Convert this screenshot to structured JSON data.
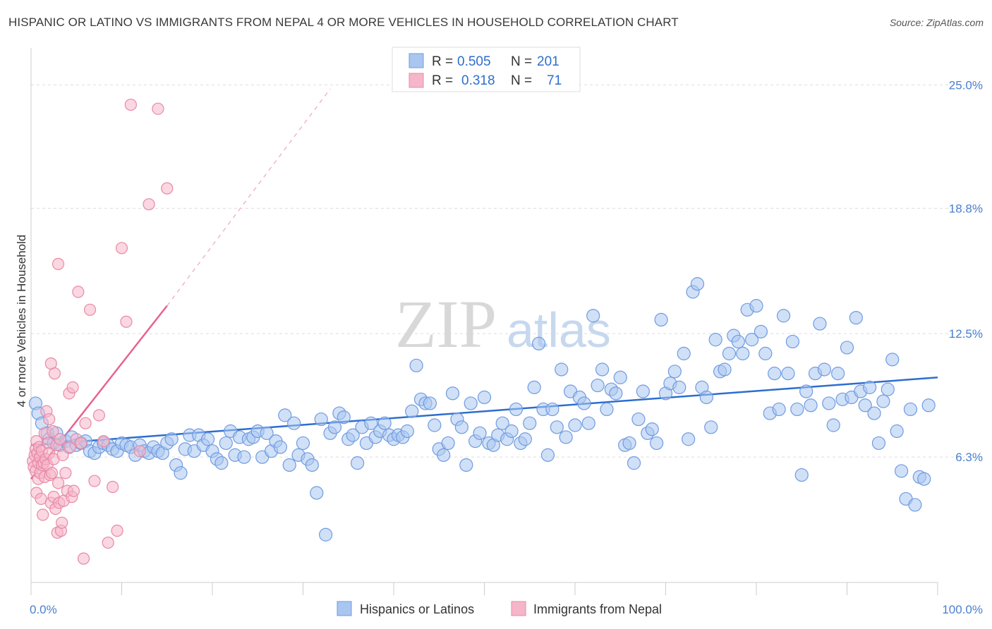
{
  "title": "HISPANIC OR LATINO VS IMMIGRANTS FROM NEPAL 4 OR MORE VEHICLES IN HOUSEHOLD CORRELATION CHART",
  "source": "Source: ZipAtlas.com",
  "watermark": {
    "zip": "ZIP",
    "atlas": "atlas"
  },
  "colors": {
    "blue": "#2d6ecf",
    "blue_fill": "#a9c6f0",
    "pink": "#e8638e",
    "pink_fill": "#f6b6c9",
    "grid": "#dddddd"
  },
  "legend_top": {
    "rows": [
      {
        "r_label": "R =",
        "r_value": "0.505",
        "n_label": "N =",
        "n_value": "201"
      },
      {
        "r_label": "R =",
        "r_value": "0.318",
        "n_label": "N =",
        "n_value": "71"
      }
    ]
  },
  "legend_bottom": [
    "Hispanics or Latinos",
    "Immigrants from Nepal"
  ],
  "chart_data": {
    "type": "scatter",
    "xlabel": "",
    "ylabel": "4 or more Vehicles in Household",
    "xlim": [
      0,
      100
    ],
    "ylim": [
      0,
      26.5
    ],
    "x_tick_labels": [
      "0.0%",
      "100.0%"
    ],
    "y_ticks": [
      6.3,
      12.5,
      18.8,
      25.0
    ],
    "y_tick_labels": [
      "6.3%",
      "12.5%",
      "18.8%",
      "25.0%"
    ],
    "grid": true,
    "series": [
      {
        "name": "Hispanics or Latinos",
        "color": "#2d6ecf",
        "trend": {
          "x": [
            0,
            100
          ],
          "y": [
            6.9,
            10.3
          ]
        },
        "points": [
          [
            0.5,
            9.0
          ],
          [
            0.8,
            8.5
          ],
          [
            1.2,
            8.0
          ],
          [
            1.8,
            7.5
          ],
          [
            2.0,
            7.2
          ],
          [
            2.5,
            7.0
          ],
          [
            2.8,
            7.5
          ],
          [
            3.2,
            6.9
          ],
          [
            3.8,
            7.1
          ],
          [
            4.2,
            6.8
          ],
          [
            4.5,
            7.3
          ],
          [
            5.0,
            6.9
          ],
          [
            5.5,
            7.0
          ],
          [
            6.0,
            7.1
          ],
          [
            6.5,
            6.6
          ],
          [
            7.0,
            6.5
          ],
          [
            7.5,
            6.8
          ],
          [
            8.0,
            7.0
          ],
          [
            8.5,
            6.9
          ],
          [
            9.0,
            6.7
          ],
          [
            9.5,
            6.6
          ],
          [
            10.0,
            7.0
          ],
          [
            10.5,
            6.9
          ],
          [
            11.0,
            6.8
          ],
          [
            11.5,
            6.4
          ],
          [
            12.0,
            6.9
          ],
          [
            12.5,
            6.6
          ],
          [
            13.0,
            6.5
          ],
          [
            13.5,
            6.8
          ],
          [
            14.0,
            6.6
          ],
          [
            14.5,
            6.5
          ],
          [
            15.0,
            7.0
          ],
          [
            15.5,
            7.2
          ],
          [
            16.0,
            5.9
          ],
          [
            16.5,
            5.5
          ],
          [
            17.0,
            6.7
          ],
          [
            17.5,
            7.4
          ],
          [
            18.0,
            6.6
          ],
          [
            18.5,
            7.4
          ],
          [
            19.0,
            6.9
          ],
          [
            19.5,
            7.2
          ],
          [
            20.0,
            6.6
          ],
          [
            20.5,
            6.2
          ],
          [
            21.0,
            6.0
          ],
          [
            21.5,
            7.0
          ],
          [
            22.0,
            7.6
          ],
          [
            22.5,
            6.4
          ],
          [
            23.0,
            7.3
          ],
          [
            23.5,
            6.3
          ],
          [
            24.0,
            7.2
          ],
          [
            24.5,
            7.3
          ],
          [
            25.0,
            7.6
          ],
          [
            25.5,
            6.3
          ],
          [
            26.0,
            7.5
          ],
          [
            26.5,
            6.6
          ],
          [
            27.0,
            7.1
          ],
          [
            27.5,
            6.8
          ],
          [
            28.0,
            8.4
          ],
          [
            28.5,
            5.9
          ],
          [
            29.0,
            8.0
          ],
          [
            29.5,
            6.4
          ],
          [
            30.0,
            7.0
          ],
          [
            30.5,
            6.2
          ],
          [
            31.0,
            5.9
          ],
          [
            31.5,
            4.5
          ],
          [
            32.0,
            8.2
          ],
          [
            32.5,
            2.4
          ],
          [
            33.0,
            7.5
          ],
          [
            33.5,
            7.8
          ],
          [
            34.0,
            8.5
          ],
          [
            34.5,
            8.3
          ],
          [
            35.0,
            7.2
          ],
          [
            35.5,
            7.4
          ],
          [
            36.0,
            6.0
          ],
          [
            36.5,
            7.8
          ],
          [
            37.0,
            7.0
          ],
          [
            37.5,
            8.0
          ],
          [
            38.0,
            7.3
          ],
          [
            38.5,
            7.6
          ],
          [
            39.0,
            8.0
          ],
          [
            39.5,
            7.4
          ],
          [
            40.0,
            7.2
          ],
          [
            40.5,
            7.4
          ],
          [
            41.0,
            7.3
          ],
          [
            41.5,
            7.6
          ],
          [
            42.0,
            8.6
          ],
          [
            42.5,
            10.9
          ],
          [
            43.0,
            9.2
          ],
          [
            43.5,
            9.0
          ],
          [
            44.0,
            9.0
          ],
          [
            44.5,
            7.9
          ],
          [
            45.0,
            6.7
          ],
          [
            45.5,
            6.4
          ],
          [
            46.0,
            7.0
          ],
          [
            46.5,
            9.5
          ],
          [
            47.0,
            8.2
          ],
          [
            47.5,
            7.8
          ],
          [
            48.0,
            5.9
          ],
          [
            48.5,
            9.0
          ],
          [
            49.0,
            7.1
          ],
          [
            49.5,
            7.5
          ],
          [
            50.0,
            9.3
          ],
          [
            50.5,
            7.0
          ],
          [
            51.0,
            6.9
          ],
          [
            51.5,
            7.4
          ],
          [
            52.0,
            8.0
          ],
          [
            52.5,
            7.2
          ],
          [
            53.0,
            7.6
          ],
          [
            53.5,
            8.7
          ],
          [
            54.0,
            7.0
          ],
          [
            54.5,
            7.2
          ],
          [
            55.0,
            8.0
          ],
          [
            55.5,
            9.8
          ],
          [
            56.0,
            12.0
          ],
          [
            56.5,
            8.7
          ],
          [
            57.0,
            6.4
          ],
          [
            57.5,
            8.7
          ],
          [
            58.0,
            7.8
          ],
          [
            58.5,
            10.7
          ],
          [
            59.0,
            7.3
          ],
          [
            59.5,
            9.6
          ],
          [
            60.0,
            7.9
          ],
          [
            60.5,
            9.3
          ],
          [
            61.0,
            9.0
          ],
          [
            61.5,
            8.0
          ],
          [
            62.0,
            13.4
          ],
          [
            62.5,
            9.9
          ],
          [
            63.0,
            10.7
          ],
          [
            63.5,
            8.7
          ],
          [
            64.0,
            9.7
          ],
          [
            64.5,
            9.5
          ],
          [
            65.0,
            10.3
          ],
          [
            65.5,
            6.9
          ],
          [
            66.0,
            7.0
          ],
          [
            66.5,
            6.0
          ],
          [
            67.0,
            8.2
          ],
          [
            67.5,
            9.6
          ],
          [
            68.0,
            7.5
          ],
          [
            68.5,
            7.7
          ],
          [
            69.0,
            7.0
          ],
          [
            69.5,
            13.2
          ],
          [
            70.0,
            9.5
          ],
          [
            70.5,
            10.0
          ],
          [
            71.0,
            10.6
          ],
          [
            71.5,
            9.8
          ],
          [
            72.0,
            11.5
          ],
          [
            72.5,
            7.2
          ],
          [
            73.0,
            14.6
          ],
          [
            73.5,
            15.0
          ],
          [
            74.0,
            9.8
          ],
          [
            74.5,
            9.3
          ],
          [
            75.0,
            7.8
          ],
          [
            75.5,
            12.2
          ],
          [
            76.0,
            10.6
          ],
          [
            76.5,
            10.7
          ],
          [
            77.0,
            11.5
          ],
          [
            77.5,
            12.4
          ],
          [
            78.0,
            12.1
          ],
          [
            78.5,
            11.5
          ],
          [
            79.0,
            13.7
          ],
          [
            79.5,
            12.2
          ],
          [
            80.0,
            13.9
          ],
          [
            80.5,
            12.6
          ],
          [
            81.0,
            11.5
          ],
          [
            81.5,
            8.5
          ],
          [
            82.0,
            10.5
          ],
          [
            82.5,
            8.7
          ],
          [
            83.0,
            13.4
          ],
          [
            83.5,
            10.5
          ],
          [
            84.0,
            12.1
          ],
          [
            84.5,
            8.7
          ],
          [
            85.0,
            5.4
          ],
          [
            85.5,
            9.6
          ],
          [
            86.0,
            8.9
          ],
          [
            86.5,
            10.5
          ],
          [
            87.0,
            13.0
          ],
          [
            87.5,
            10.7
          ],
          [
            88.0,
            9.0
          ],
          [
            88.5,
            7.9
          ],
          [
            89.0,
            10.5
          ],
          [
            89.5,
            9.2
          ],
          [
            90.0,
            11.8
          ],
          [
            90.5,
            9.3
          ],
          [
            91.0,
            13.3
          ],
          [
            91.5,
            9.6
          ],
          [
            92.0,
            8.9
          ],
          [
            92.5,
            9.8
          ],
          [
            93.0,
            8.5
          ],
          [
            93.5,
            7.0
          ],
          [
            94.0,
            9.1
          ],
          [
            94.5,
            9.7
          ],
          [
            95.0,
            11.2
          ],
          [
            95.5,
            7.6
          ],
          [
            96.0,
            5.6
          ],
          [
            96.5,
            4.2
          ],
          [
            97.0,
            8.7
          ],
          [
            97.5,
            3.9
          ],
          [
            98.0,
            5.3
          ],
          [
            98.5,
            5.2
          ],
          [
            99.0,
            8.9
          ]
        ]
      },
      {
        "name": "Immigrants from Nepal",
        "color": "#e8638e",
        "trend": {
          "x": [
            0,
            15
          ],
          "y": [
            5.2,
            13.9
          ],
          "dashed_to": {
            "x": 33,
            "y": 24.8
          }
        },
        "points": [
          [
            0.2,
            6.1
          ],
          [
            0.3,
            5.8
          ],
          [
            0.4,
            6.4
          ],
          [
            0.5,
            6.7
          ],
          [
            0.5,
            5.6
          ],
          [
            0.6,
            7.1
          ],
          [
            0.6,
            4.5
          ],
          [
            0.7,
            6.5
          ],
          [
            0.8,
            6.0
          ],
          [
            0.8,
            5.2
          ],
          [
            0.9,
            6.8
          ],
          [
            1.0,
            6.3
          ],
          [
            1.0,
            5.5
          ],
          [
            1.1,
            4.2
          ],
          [
            1.2,
            6.6
          ],
          [
            1.2,
            5.9
          ],
          [
            1.3,
            3.4
          ],
          [
            1.4,
            6.0
          ],
          [
            1.5,
            5.3
          ],
          [
            1.5,
            7.5
          ],
          [
            1.6,
            6.2
          ],
          [
            1.7,
            8.6
          ],
          [
            1.8,
            5.9
          ],
          [
            1.9,
            7.0
          ],
          [
            2.0,
            6.5
          ],
          [
            2.0,
            8.2
          ],
          [
            2.1,
            5.4
          ],
          [
            2.2,
            4.0
          ],
          [
            2.2,
            11.0
          ],
          [
            2.3,
            5.5
          ],
          [
            2.4,
            7.6
          ],
          [
            2.5,
            6.2
          ],
          [
            2.5,
            4.3
          ],
          [
            2.6,
            10.5
          ],
          [
            2.7,
            3.7
          ],
          [
            2.8,
            6.9
          ],
          [
            2.9,
            2.5
          ],
          [
            3.0,
            5.0
          ],
          [
            3.0,
            16.0
          ],
          [
            3.1,
            4.0
          ],
          [
            3.2,
            7.2
          ],
          [
            3.3,
            2.6
          ],
          [
            3.4,
            3.0
          ],
          [
            3.5,
            6.4
          ],
          [
            3.6,
            4.1
          ],
          [
            3.8,
            5.5
          ],
          [
            4.0,
            4.6
          ],
          [
            4.2,
            9.5
          ],
          [
            4.3,
            6.8
          ],
          [
            4.5,
            4.3
          ],
          [
            4.6,
            9.8
          ],
          [
            4.7,
            4.6
          ],
          [
            5.0,
            7.2
          ],
          [
            5.2,
            14.6
          ],
          [
            5.5,
            7.0
          ],
          [
            5.8,
            1.2
          ],
          [
            6.0,
            8.0
          ],
          [
            6.5,
            13.7
          ],
          [
            7.0,
            5.1
          ],
          [
            7.5,
            8.4
          ],
          [
            8.0,
            7.1
          ],
          [
            8.5,
            2.0
          ],
          [
            9.0,
            4.8
          ],
          [
            9.5,
            2.6
          ],
          [
            10.0,
            16.8
          ],
          [
            10.5,
            13.1
          ],
          [
            11.0,
            24.0
          ],
          [
            12.0,
            6.6
          ],
          [
            13.0,
            19.0
          ],
          [
            14.0,
            23.8
          ],
          [
            15.0,
            19.8
          ]
        ]
      }
    ]
  }
}
